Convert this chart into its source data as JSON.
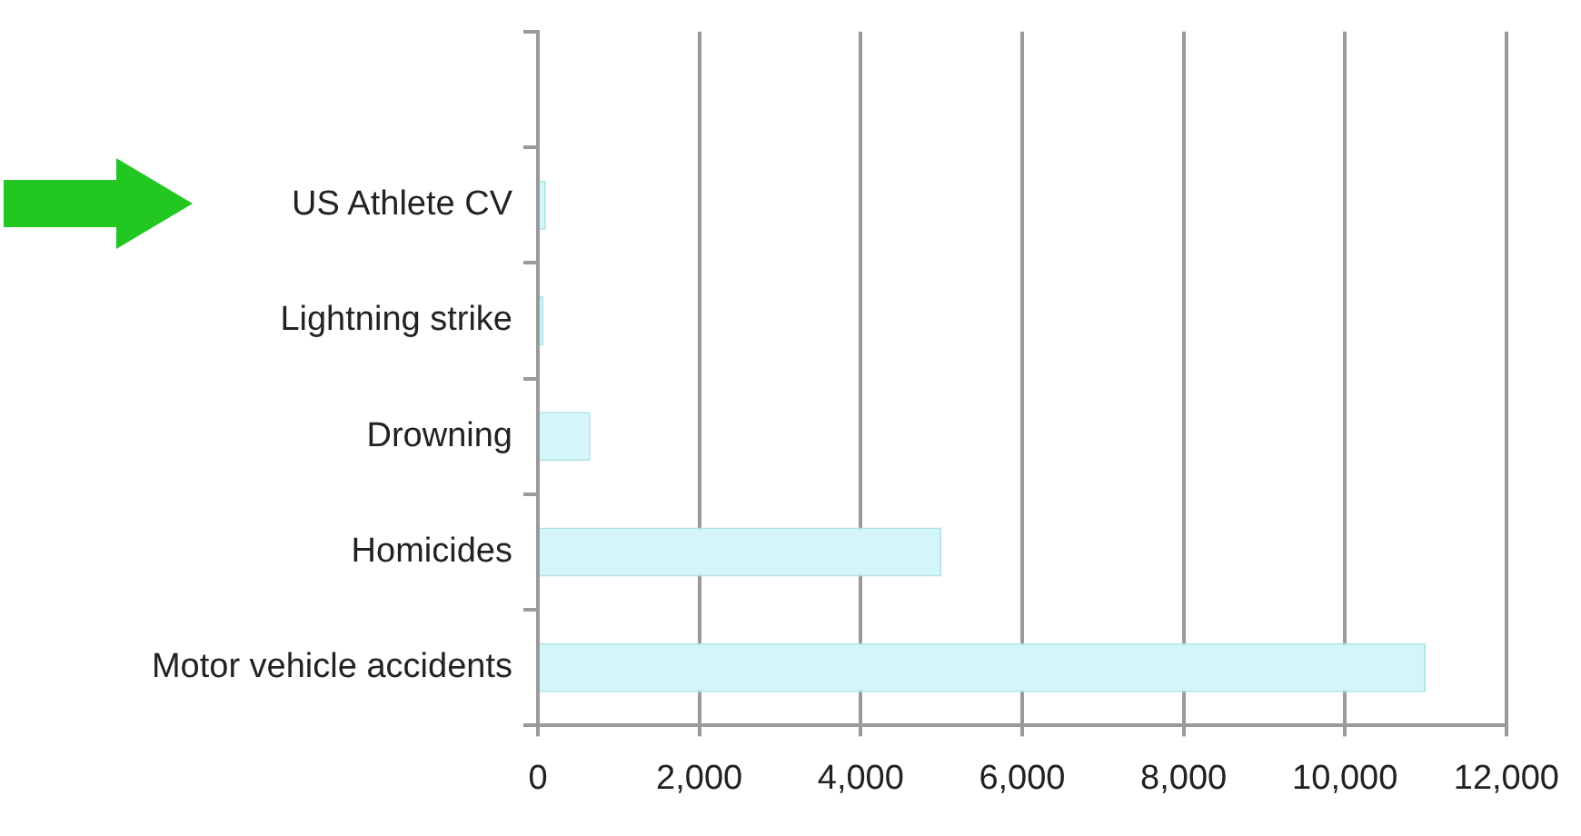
{
  "chart_data": {
    "type": "bar",
    "orientation": "horizontal",
    "categories": [
      null,
      "US Athlete CV",
      "Lightning strike",
      "Drowning",
      "Homicides",
      "Motor vehicle accidents"
    ],
    "values": [
      null,
      100,
      70,
      650,
      5000,
      11000
    ],
    "color": "#d4f6f8",
    "xlim": [
      0,
      12000
    ],
    "xticks": [
      {
        "value": 0,
        "label": "0"
      },
      {
        "value": 2000,
        "label": "2,000"
      },
      {
        "value": 4000,
        "label": "4,000"
      },
      {
        "value": 6000,
        "label": "6,000"
      },
      {
        "value": 8000,
        "label": "8,000"
      },
      {
        "value": 10000,
        "label": "10,000"
      },
      {
        "value": 12000,
        "label": "12,000"
      }
    ],
    "grid": "x",
    "legend": false
  }
}
